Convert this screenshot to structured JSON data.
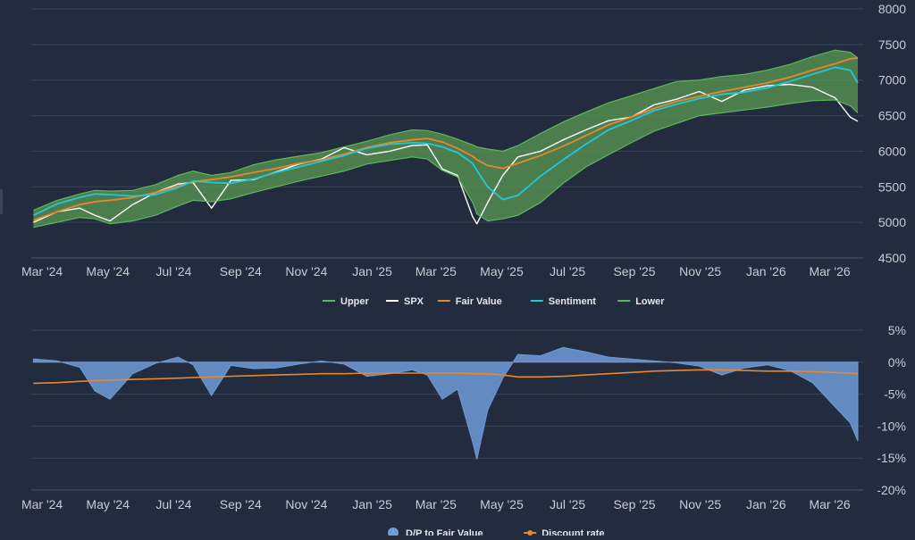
{
  "chart_data": [
    {
      "type": "line",
      "title": "",
      "x_range": [
        "2024-02-20",
        "2026-04-01"
      ],
      "ylim": [
        4500,
        8000
      ],
      "y_ticks": [
        "8000",
        "7500",
        "7000",
        "6500",
        "6000",
        "5500",
        "5000",
        "4500"
      ],
      "x_ticks": [
        {
          "date": "2024-03-01",
          "label": "Mar '24"
        },
        {
          "date": "2024-05-01",
          "label": "May '24"
        },
        {
          "date": "2024-07-01",
          "label": "Jul '24"
        },
        {
          "date": "2024-09-01",
          "label": "Sep '24"
        },
        {
          "date": "2024-11-01",
          "label": "Nov '24"
        },
        {
          "date": "2025-01-01",
          "label": "Jan '25"
        },
        {
          "date": "2025-03-01",
          "label": "Mar '25"
        },
        {
          "date": "2025-05-01",
          "label": "May '25"
        },
        {
          "date": "2025-07-01",
          "label": "Jul '25"
        },
        {
          "date": "2025-09-01",
          "label": "Sep '25"
        },
        {
          "date": "2025-11-01",
          "label": "Nov '25"
        },
        {
          "date": "2026-01-01",
          "label": "Jan '26"
        },
        {
          "date": "2026-03-01",
          "label": "Mar '26"
        }
      ],
      "grid": true,
      "legend_position": "bottom",
      "x": [
        "2024-02-22",
        "2024-03-15",
        "2024-04-05",
        "2024-04-19",
        "2024-05-03",
        "2024-05-24",
        "2024-06-14",
        "2024-07-05",
        "2024-07-19",
        "2024-08-05",
        "2024-08-23",
        "2024-09-13",
        "2024-10-04",
        "2024-10-25",
        "2024-11-15",
        "2024-12-06",
        "2024-12-27",
        "2025-01-17",
        "2025-02-07",
        "2025-02-21",
        "2025-03-07",
        "2025-03-21",
        "2025-04-04",
        "2025-04-08",
        "2025-04-18",
        "2025-05-02",
        "2025-05-16",
        "2025-06-06",
        "2025-06-27",
        "2025-07-18",
        "2025-08-08",
        "2025-08-29",
        "2025-09-19",
        "2025-10-10",
        "2025-10-31",
        "2025-11-21",
        "2025-12-12",
        "2026-01-02",
        "2026-01-23",
        "2026-02-13",
        "2026-03-06",
        "2026-03-20",
        "2026-03-27"
      ],
      "series": [
        {
          "name": "Upper",
          "color": "#5cb85c",
          "style": "band-top",
          "values": [
            5170,
            5310,
            5400,
            5450,
            5440,
            5450,
            5530,
            5660,
            5720,
            5660,
            5700,
            5810,
            5880,
            5930,
            5980,
            6060,
            6140,
            6230,
            6300,
            6290,
            6240,
            6170,
            6090,
            6060,
            6030,
            6000,
            6080,
            6250,
            6410,
            6550,
            6680,
            6780,
            6880,
            6980,
            7000,
            7050,
            7080,
            7140,
            7220,
            7330,
            7420,
            7390,
            7310
          ]
        },
        {
          "name": "SPX",
          "color": "#ffffff",
          "style": "line",
          "values": [
            5000,
            5150,
            5200,
            5100,
            5020,
            5250,
            5420,
            5540,
            5560,
            5200,
            5590,
            5600,
            5710,
            5820,
            5890,
            6050,
            5950,
            6000,
            6080,
            6090,
            5750,
            5660,
            5080,
            4980,
            5280,
            5660,
            5920,
            6000,
            6160,
            6300,
            6430,
            6480,
            6650,
            6730,
            6840,
            6700,
            6860,
            6920,
            6940,
            6900,
            6750,
            6480,
            6420
          ]
        },
        {
          "name": "Fair Value",
          "color": "#e8872d",
          "style": "line",
          "values": [
            5030,
            5150,
            5250,
            5290,
            5310,
            5350,
            5420,
            5510,
            5570,
            5600,
            5640,
            5700,
            5760,
            5830,
            5880,
            5960,
            6050,
            6120,
            6160,
            6180,
            6130,
            6040,
            5930,
            5880,
            5800,
            5760,
            5830,
            5940,
            6070,
            6220,
            6370,
            6480,
            6600,
            6700,
            6770,
            6840,
            6900,
            6960,
            7040,
            7140,
            7230,
            7300,
            7310
          ]
        },
        {
          "name": "Sentiment",
          "color": "#26c6da",
          "style": "line",
          "values": [
            5100,
            5260,
            5350,
            5400,
            5390,
            5370,
            5390,
            5490,
            5580,
            5560,
            5550,
            5610,
            5700,
            5780,
            5860,
            5940,
            6040,
            6100,
            6120,
            6110,
            6060,
            5980,
            5830,
            5730,
            5500,
            5320,
            5380,
            5650,
            5880,
            6100,
            6300,
            6430,
            6570,
            6660,
            6740,
            6800,
            6830,
            6890,
            6980,
            7080,
            7180,
            7140,
            6960
          ]
        },
        {
          "name": "Lower",
          "color": "#5cb85c",
          "style": "band-bottom",
          "values": [
            4930,
            5000,
            5070,
            5050,
            4980,
            5020,
            5100,
            5230,
            5310,
            5290,
            5330,
            5420,
            5500,
            5580,
            5650,
            5720,
            5820,
            5870,
            5920,
            5890,
            5730,
            5640,
            5280,
            5120,
            5020,
            5050,
            5100,
            5280,
            5550,
            5780,
            5950,
            6120,
            6280,
            6390,
            6500,
            6540,
            6580,
            6620,
            6670,
            6710,
            6720,
            6640,
            6540
          ]
        }
      ]
    },
    {
      "type": "area",
      "title": "",
      "x_range": [
        "2024-02-20",
        "2026-04-01"
      ],
      "ylim": [
        -20,
        5
      ],
      "y_ticks": [
        "5%",
        "0%",
        "-5%",
        "-10%",
        "-15%",
        "-20%"
      ],
      "grid": true,
      "legend_position": "bottom",
      "x": [
        "2024-02-22",
        "2024-03-15",
        "2024-04-05",
        "2024-04-19",
        "2024-05-03",
        "2024-05-24",
        "2024-06-14",
        "2024-07-05",
        "2024-07-19",
        "2024-08-05",
        "2024-08-23",
        "2024-09-13",
        "2024-10-04",
        "2024-10-25",
        "2024-11-15",
        "2024-12-06",
        "2024-12-27",
        "2025-01-17",
        "2025-02-07",
        "2025-02-21",
        "2025-03-07",
        "2025-03-21",
        "2025-04-04",
        "2025-04-08",
        "2025-04-18",
        "2025-05-02",
        "2025-05-16",
        "2025-06-06",
        "2025-06-27",
        "2025-07-18",
        "2025-08-08",
        "2025-08-29",
        "2025-09-19",
        "2025-10-10",
        "2025-10-31",
        "2025-11-21",
        "2025-12-12",
        "2026-01-02",
        "2026-01-23",
        "2026-02-13",
        "2026-03-06",
        "2026-03-20",
        "2026-03-27"
      ],
      "series": [
        {
          "name": "D/P to Fair Value",
          "color": "#6f9bd8",
          "style": "area",
          "values": [
            0.5,
            0.2,
            -0.8,
            -4.5,
            -5.8,
            -1.8,
            -0.2,
            0.8,
            -0.4,
            -5.2,
            -0.5,
            -1.0,
            -0.9,
            -0.3,
            0.2,
            -0.3,
            -2.2,
            -1.8,
            -1.2,
            -2.0,
            -5.8,
            -4.2,
            -12.5,
            -15.2,
            -7.5,
            -2.5,
            1.2,
            1.0,
            2.3,
            1.6,
            0.8,
            0.5,
            0.2,
            -0.1,
            -0.6,
            -2.0,
            -0.9,
            -0.4,
            -1.3,
            -3.2,
            -7.0,
            -9.5,
            -12.3
          ]
        },
        {
          "name": "Discount rate",
          "color": "#e8872d",
          "style": "line",
          "values": [
            -3.3,
            -3.2,
            -3.0,
            -2.9,
            -2.8,
            -2.7,
            -2.6,
            -2.5,
            -2.4,
            -2.3,
            -2.2,
            -2.1,
            -2.0,
            -1.9,
            -1.8,
            -1.8,
            -1.7,
            -1.7,
            -1.7,
            -1.7,
            -1.7,
            -1.7,
            -1.8,
            -1.8,
            -1.8,
            -2.0,
            -2.3,
            -2.3,
            -2.2,
            -2.0,
            -1.8,
            -1.6,
            -1.4,
            -1.3,
            -1.2,
            -1.2,
            -1.3,
            -1.4,
            -1.4,
            -1.5,
            -1.6,
            -1.7,
            -1.8
          ]
        }
      ]
    }
  ]
}
